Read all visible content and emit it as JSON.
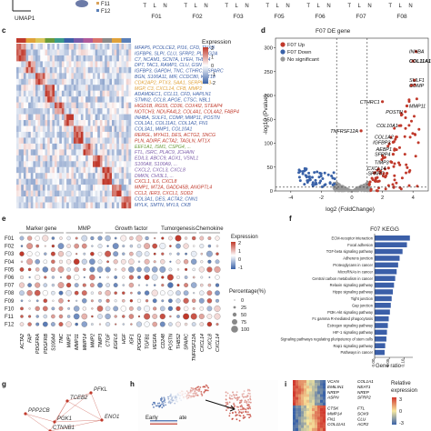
{
  "panel_letters": [
    "c",
    "d",
    "e",
    "f",
    "g",
    "h",
    "i"
  ],
  "top_strip": {
    "umap_label": "UMAP1",
    "legend_items": [
      "F11",
      "F12"
    ],
    "fibroblast_labels": [
      "F01",
      "F02",
      "F03",
      "F05",
      "F06",
      "F07",
      "F08"
    ],
    "tissue_letters": "T L N"
  },
  "heatmap_c": {
    "colorbar_title": "Expression",
    "colorbar_ticks": [
      "2",
      "1",
      "0",
      "-1",
      "-2"
    ],
    "colors": {
      "high": "#c0392b",
      "mid": "#ffffff",
      "low": "#3a62a8"
    },
    "gene_groups": [
      {
        "text": "MFAP5, PCOLCE2, PI16, CFD, TNXB",
        "color": "#3b5fa8"
      },
      {
        "text": "IGFBP6, SLPI, CLU, SFRP2, PLA2G2A",
        "color": "#3b5fa8"
      },
      {
        "text": "C7, NCAM1, SCN7A, LYEH, THBS4",
        "color": "#3b5fa8"
      },
      {
        "text": "DPT, TAC1, RAMP1, CLU, GSN",
        "color": "#3b5fa8"
      },
      {
        "text": "IGFBP3, GAPDH, TNC, CTHRC1, SPARC",
        "color": "#3b5fa8"
      },
      {
        "text": "BGN, S100A11, MIF, CCDC80, KRT18",
        "color": "#3b5fa8"
      },
      {
        "text": "CDK2AP2, PTX3, SAA1, SERPINA3",
        "color": "#e0a23a"
      },
      {
        "text": "MGP, C3, CXCL14, CFB, MMP2",
        "color": "#e0a23a"
      },
      {
        "text": "ADAMDEC1, CCL11, CFD, HAPLN1",
        "color": "#3b5fa8"
      },
      {
        "text": "STMN2, CCL8, APOE, CTSC, NBL1",
        "color": "#3b5fa8"
      },
      {
        "text": "HIGD1B, RGS5, CD36, COX4I2, STEAP4",
        "color": "#c0392b"
      },
      {
        "text": "NOTCH3, NDUFA4L2, COL4A1, COL4A2, FABP4",
        "color": "#c0392b"
      },
      {
        "text": "INHBA, SULF1, COMP, MMP11, POSTN",
        "color": "#3b5fa8"
      },
      {
        "text": "COL1A1, COL11A1, COL1A2, FN1",
        "color": "#3b5fa8"
      },
      {
        "text": "COL3A1, MMP1, COL10A1",
        "color": "#3b5fa8"
      },
      {
        "text": "RERGL, MYH11, DES, ACTG2, SNCG",
        "color": "#c0392b"
      },
      {
        "text": "PLN, ADIRF, ACTA2, TAGLN, MT1X",
        "color": "#c0392b"
      },
      {
        "text": "EEF1A1, ISM1, CSPG4, ...",
        "color": "#6a9a3a"
      },
      {
        "text": "FTL, ISRC, PLAC9, JCHAIN",
        "color": "#7a5aa8"
      },
      {
        "text": "EDIL3, ABCC9, AOX1, VSNL1",
        "color": "#7a5aa8"
      },
      {
        "text": "S100A8, S100A9, ...",
        "color": "#7a5aa8"
      },
      {
        "text": "CXCL2, CXCL3, CXCL8",
        "color": "#7a5aa8"
      },
      {
        "text": "DMKN, CHI3L1, ...",
        "color": "#7a5aa8"
      },
      {
        "text": "CXCL1, IL6, CXCL8",
        "color": "#c0392b"
      },
      {
        "text": "MMP1, MT2A, GADD45B, ANGPTL4",
        "color": "#c0392b"
      },
      {
        "text": "CCL2, IER3, CXCL1, SOD2",
        "color": "#c0392b"
      },
      {
        "text": "COL3A1, DES, ACTA2, CNN1",
        "color": "#3b5fa8"
      },
      {
        "text": "MYLK, SMTN, MYL9, CKB",
        "color": "#3b5fa8"
      }
    ]
  },
  "volcano_d": {
    "title": "F07 DE gene",
    "legend": [
      {
        "label": "F07 Up",
        "color": "#c0392b"
      },
      {
        "label": "F07 Down",
        "color": "#3a62a8"
      },
      {
        "label": "No significant",
        "color": "#9a9a9a"
      }
    ],
    "xlabel": "log2 (FoldChange)",
    "ylabel": "-log10 (Pvalue)",
    "x_ticks": [
      "-4",
      "-2",
      "0",
      "2",
      "4"
    ],
    "y_ticks": [
      "0",
      "50",
      "100",
      "150",
      "200",
      "250",
      "300"
    ],
    "xlim": [
      -5,
      5
    ],
    "ylim": [
      0,
      320
    ],
    "gene_labels": [
      {
        "name": "INHBA",
        "x": 4.2,
        "y": 292,
        "bold": false
      },
      {
        "name": "COL11A1",
        "x": 4.0,
        "y": 272,
        "bold": true
      },
      {
        "name": "SULF1",
        "x": 4.1,
        "y": 232,
        "bold": false
      },
      {
        "name": "COMP",
        "x": 3.9,
        "y": 221,
        "bold": false
      },
      {
        "name": "CTHRC1",
        "x": 2.0,
        "y": 187,
        "bold": false
      },
      {
        "name": "MMP11",
        "x": 3.6,
        "y": 178,
        "bold": false
      },
      {
        "name": "POSTN",
        "x": 3.5,
        "y": 166,
        "bold": false
      },
      {
        "name": "TNFRSF12A",
        "x": 0.6,
        "y": 126,
        "bold": false
      },
      {
        "name": "COL10A1",
        "x": 3.2,
        "y": 137,
        "bold": false
      },
      {
        "name": "COL1A2",
        "x": 2.9,
        "y": 113,
        "bold": false
      },
      {
        "name": "IGFBP3",
        "x": 2.7,
        "y": 102,
        "bold": false
      },
      {
        "name": "AEBP1",
        "x": 2.8,
        "y": 88,
        "bold": false
      },
      {
        "name": "SFRP4",
        "x": 2.7,
        "y": 77,
        "bold": false
      },
      {
        "name": "TIMP3",
        "x": 2.6,
        "y": 60,
        "bold": false
      },
      {
        "name": "CXCL14",
        "x": 2.4,
        "y": 48,
        "bold": false
      },
      {
        "name": "SPARC",
        "x": 2.3,
        "y": 37,
        "bold": false
      }
    ]
  },
  "dotplot_e": {
    "groups": [
      "Marker gene",
      "MMP",
      "Growth factor",
      "Tumorgenesis",
      "Chemokine"
    ],
    "rows": [
      "F01",
      "F02",
      "F03",
      "F04",
      "F05",
      "F06",
      "F07",
      "F08",
      "F09",
      "F10",
      "F11",
      "F12"
    ],
    "genes": [
      "ACTA2",
      "FAP",
      "PDGFRA",
      "PDGFRB",
      "S100A4",
      "TNC",
      "MMP1",
      "MMP11",
      "MMP14",
      "MMP2",
      "TIMP3",
      "CTGF",
      "EGFL6",
      "HGF",
      "IGF1",
      "PDGFD",
      "TGFB1",
      "VEGFA",
      "CD248",
      "POSTN",
      "THBS2",
      "SPARC",
      "TNFRSF12A",
      "CXCL14",
      "CXCL8",
      "CXCL14"
    ],
    "colorbar_title": "Expression",
    "colorbar_ticks": [
      "2",
      "1",
      "0",
      "-1"
    ],
    "size_title": "Percentage(%)",
    "size_ticks": [
      "0",
      "25",
      "50",
      "75",
      "100"
    ]
  },
  "bar_f": {
    "title": "F07 KEGG",
    "xlabel": "Gene ratio",
    "x_ticks": [
      "0.00",
      "0.05",
      "0.10"
    ],
    "bar_color": "#3b5fa8",
    "highlight_color": "#c0392b",
    "terms": [
      {
        "name": "ECM-receptor interaction",
        "value": 0.12,
        "highlight": false
      },
      {
        "name": "Focal adhesion",
        "value": 0.11,
        "highlight": false
      },
      {
        "name": "TGF-beta signaling pathway",
        "value": 0.095,
        "highlight": true
      },
      {
        "name": "Adherens junction",
        "value": 0.085,
        "highlight": false
      },
      {
        "name": "Proteoglycans in cancer",
        "value": 0.08,
        "highlight": false
      },
      {
        "name": "MicroRNAs in cancer",
        "value": 0.075,
        "highlight": false
      },
      {
        "name": "Central carbon metabolism in cancer",
        "value": 0.07,
        "highlight": false
      },
      {
        "name": "Relaxin signaling pathway",
        "value": 0.066,
        "highlight": false
      },
      {
        "name": "Hippo signaling pathway",
        "value": 0.062,
        "highlight": false
      },
      {
        "name": "Tight junction",
        "value": 0.058,
        "highlight": false
      },
      {
        "name": "Gap junction",
        "value": 0.055,
        "highlight": false
      },
      {
        "name": "PI3K-Akt signaling pathway",
        "value": 0.052,
        "highlight": false
      },
      {
        "name": "Fc gamma R-mediated phagocytosis",
        "value": 0.048,
        "highlight": false
      },
      {
        "name": "Estrogen signaling pathway",
        "value": 0.045,
        "highlight": false
      },
      {
        "name": "HIF-1 signaling pathway",
        "value": 0.042,
        "highlight": true
      },
      {
        "name": "Signaling pathways regulating pluripotency of stem cells",
        "value": 0.04,
        "highlight": true
      },
      {
        "name": "Rap1 signaling pathway",
        "value": 0.036,
        "highlight": false
      },
      {
        "name": "Pathways in cancer",
        "value": 0.034,
        "highlight": false
      }
    ]
  },
  "network_g": {
    "nodes": [
      "PFKL",
      "TCEB2",
      "ENO1",
      "PGK1",
      "PPP2CB",
      "CTNNB1"
    ]
  },
  "panel_h": {
    "legend_text": "Early",
    "legend_text2": "ate"
  },
  "heatmap_i": {
    "genes_col1": [
      "VCAN",
      "EMILIN1",
      "NREP",
      "ASPN",
      "",
      "CTSK",
      "MMP14",
      "FN1",
      "COL11A1"
    ],
    "genes_col2": [
      "COL1A1",
      "NEAT1",
      "NREP",
      "SFRP2",
      "",
      "FTL",
      "SOX9",
      "CLU",
      "ACR2"
    ],
    "colorbar_title": "Relative expression",
    "colorbar_ticks": [
      "3",
      "0",
      "-3"
    ]
  }
}
